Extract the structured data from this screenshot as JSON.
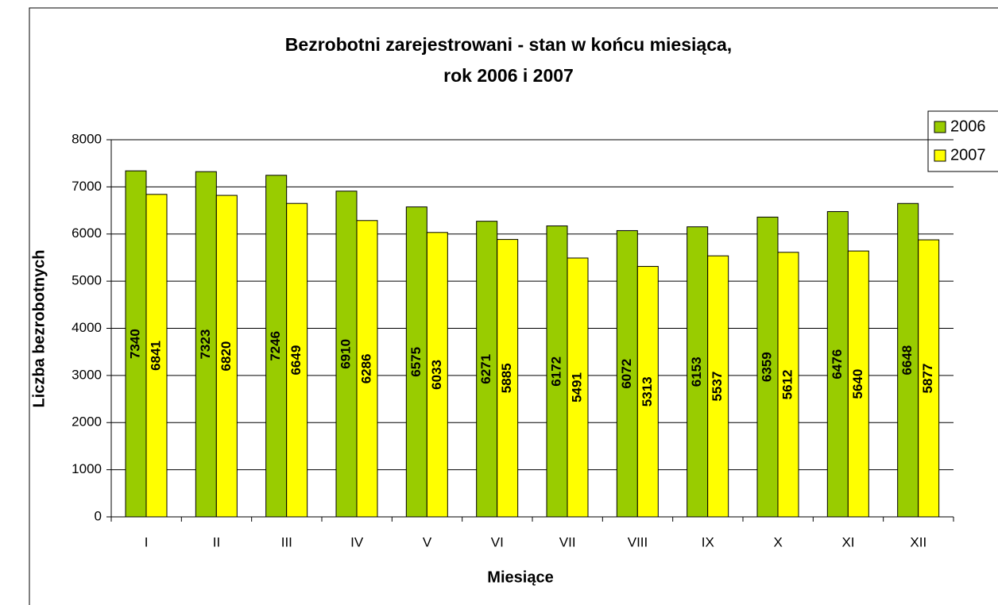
{
  "chart_data": {
    "type": "bar",
    "title": [
      "Bezrobotni zarejestrowani - stan w końcu miesiąca,",
      "rok 2006 i 2007"
    ],
    "x_label": "Miesiące",
    "y_label": "Liczba bezrobotnych",
    "categories": [
      "I",
      "II",
      "III",
      "IV",
      "V",
      "VI",
      "VII",
      "VIII",
      "IX",
      "X",
      "XI",
      "XII"
    ],
    "series": [
      {
        "name": "2006",
        "color": "#99cc00",
        "values": [
          7340,
          7323,
          7246,
          6910,
          6575,
          6271,
          6172,
          6072,
          6153,
          6359,
          6476,
          6648
        ]
      },
      {
        "name": "2007",
        "color": "#ffff00",
        "values": [
          6841,
          6820,
          6649,
          6286,
          6033,
          5885,
          5491,
          5313,
          5537,
          5612,
          5640,
          5877
        ]
      }
    ],
    "ylim": [
      0,
      8000
    ],
    "yticks": [
      0,
      1000,
      2000,
      3000,
      4000,
      5000,
      6000,
      7000,
      8000
    ],
    "grid": true,
    "legend": "right"
  }
}
